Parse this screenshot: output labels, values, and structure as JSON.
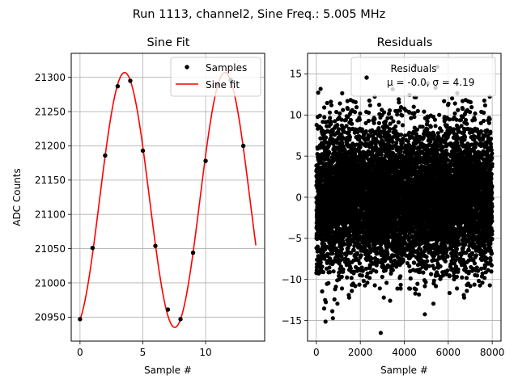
{
  "figure": {
    "suptitle": "Run 1113, channel2, Sine Freq.: 5.005 MHz"
  },
  "chart_data": [
    {
      "type": "line",
      "title": "Sine Fit",
      "xlabel": "Sample #",
      "ylabel": "ADC Counts",
      "xlim": [
        -0.7,
        14.7
      ],
      "ylim": [
        20915,
        21335
      ],
      "xticks": [
        0,
        5,
        10
      ],
      "yticks": [
        20950,
        21000,
        21050,
        21100,
        21150,
        21200,
        21250,
        21300
      ],
      "grid": true,
      "legend": "top-right",
      "samples": {
        "name": "Samples",
        "color": "#000000",
        "x": [
          0,
          1,
          2,
          3,
          4,
          5,
          6,
          7,
          8,
          9,
          10,
          11,
          12,
          13
        ],
        "y": [
          20947,
          21051,
          21186,
          21287,
          21295,
          21193,
          21054,
          20961,
          20947,
          21044,
          21178,
          21290,
          21296,
          21200
        ]
      },
      "fit": {
        "name": "Sine fit",
        "color": "#ff0000",
        "x_range": [
          0,
          14
        ],
        "amplitude": 186,
        "offset": 21121,
        "period": 7.99,
        "peak_x": 3.55
      }
    },
    {
      "type": "scatter",
      "title": "Residuals",
      "xlabel": "Sample #",
      "xlim": [
        -400,
        8400
      ],
      "ylim": [
        -17.5,
        17.5
      ],
      "xticks": [
        0,
        2000,
        4000,
        6000,
        8000
      ],
      "yticks": [
        -15,
        -10,
        -5,
        0,
        5,
        10,
        15
      ],
      "grid": true,
      "legend": "top-right",
      "series": {
        "name": "Residuals",
        "color": "#000000",
        "n_points": 8000,
        "mean": -0.0,
        "sigma": 4.19
      },
      "legend_stats": "μ = -0.0, σ = 4.19"
    }
  ]
}
